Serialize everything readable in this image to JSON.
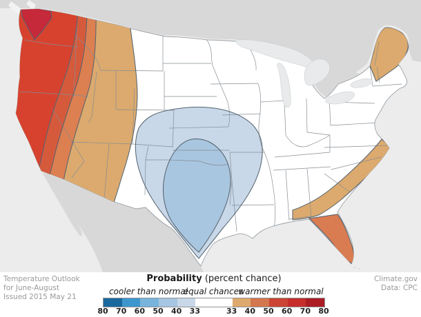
{
  "credits": {
    "left_lines": [
      "Temperature Outlook",
      "for June-August",
      "Issued 2015 May 21"
    ],
    "right_lines": [
      "Climate.gov",
      "Data: CPC"
    ]
  },
  "legend": {
    "title_bold": "Probability",
    "title_rest": " (percent chance)",
    "label_cooler": "cooler than normal",
    "label_equal": "equal chances",
    "label_warmer": "warmer than normal",
    "ticks_left": [
      "80",
      "70",
      "60",
      "50",
      "40",
      "33"
    ],
    "ticks_right": [
      "33",
      "40",
      "50",
      "60",
      "70",
      "80"
    ],
    "segments": [
      {
        "range": "cooler 70-80",
        "color": "#1a699e",
        "w": 1
      },
      {
        "range": "cooler 60-70",
        "color": "#3d97ce",
        "w": 1
      },
      {
        "range": "cooler 50-60",
        "color": "#79b4dc",
        "w": 1
      },
      {
        "range": "cooler 40-50",
        "color": "#a6c6e1",
        "w": 1
      },
      {
        "range": "cooler 33-40",
        "color": "#c9d8e9",
        "w": 1
      },
      {
        "range": "equal chances",
        "color": "#ffffff",
        "w": 2
      },
      {
        "range": "warmer 33-40",
        "color": "#dda96c",
        "w": 1
      },
      {
        "range": "warmer 40-50",
        "color": "#d4764e",
        "w": 1
      },
      {
        "range": "warmer 50-60",
        "color": "#cc4433",
        "w": 1
      },
      {
        "range": "warmer 60-70",
        "color": "#c52e2c",
        "w": 1
      },
      {
        "range": "warmer 70-80",
        "color": "#ab1c24",
        "w": 1
      }
    ]
  },
  "map": {
    "background": {
      "ocean": "#ececec",
      "neighbor_land": "#d8d8d8",
      "lakes": "#e8eaeb",
      "islands": "#f2f2f2",
      "us_fill": "#ffffff",
      "coast_stroke": "#9aa1a7",
      "state_border": "#858c93",
      "region_outline": "#56646f"
    },
    "regions": [
      {
        "name": "nw-washington-coast",
        "category": "warmer 70-80%",
        "color": "#c5293a"
      },
      {
        "name": "west-coast-wa-or-ca-nv",
        "category": "warmer 60-70%",
        "color": "#d7422f"
      },
      {
        "name": "great-basin-band",
        "category": "warmer 50-60%",
        "color": "#d55a3c"
      },
      {
        "name": "intermountain-band",
        "category": "warmer 40-50%",
        "color": "#dc7f51"
      },
      {
        "name": "rockies-band",
        "category": "warmer 33-40%",
        "color": "#dcaa6e"
      },
      {
        "name": "southern-plains-outer",
        "category": "cooler 33-40%",
        "color": "#c8d8e9"
      },
      {
        "name": "texas-oklahoma-inner",
        "category": "cooler 40-50%",
        "color": "#a9c6e0"
      },
      {
        "name": "southeast-coastal-band",
        "category": "warmer 33-40%",
        "color": "#dcaa6e"
      },
      {
        "name": "florida-peninsula",
        "category": "warmer 40-50%",
        "color": "#d97c52"
      },
      {
        "name": "northern-new-england",
        "category": "warmer 33-40%",
        "color": "#dcaa6e"
      },
      {
        "name": "remaining-us",
        "category": "equal chances",
        "color": "#ffffff"
      }
    ]
  }
}
